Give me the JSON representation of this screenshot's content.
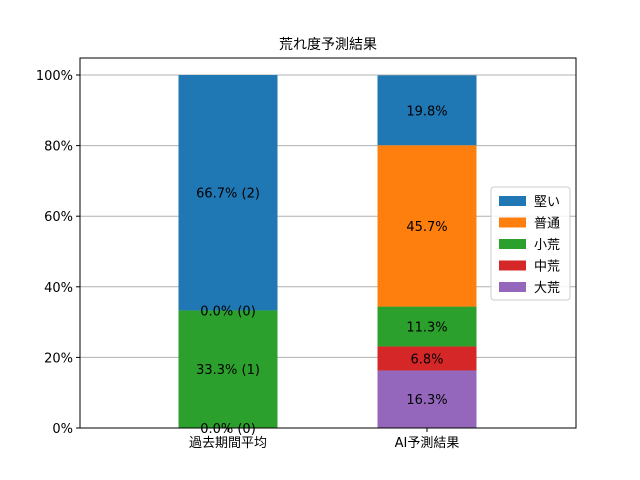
{
  "chart_data": {
    "type": "bar",
    "stacked": true,
    "title": "荒れ度予測結果",
    "categories": [
      "過去期間平均",
      "AI予測結果"
    ],
    "series": [
      {
        "name": "大荒",
        "color": "#9467bd",
        "values": [
          0.0,
          16.3
        ],
        "labels": [
          "0.0% (0)",
          "16.3%"
        ]
      },
      {
        "name": "中荒",
        "color": "#d62728",
        "values": [
          0.0,
          6.8
        ],
        "labels": [
          "",
          "6.8%"
        ]
      },
      {
        "name": "小荒",
        "color": "#2ca02c",
        "values": [
          33.3,
          11.3
        ],
        "labels": [
          "33.3% (1)",
          "11.3%"
        ]
      },
      {
        "name": "普通",
        "color": "#ff7f0e",
        "values": [
          0.0,
          45.7
        ],
        "labels": [
          "0.0% (0)",
          "45.7%"
        ]
      },
      {
        "name": "堅い",
        "color": "#1f77b4",
        "values": [
          66.7,
          19.8
        ],
        "labels": [
          "66.7% (2)",
          "19.8%"
        ]
      }
    ],
    "legend_order": [
      "堅い",
      "普通",
      "小荒",
      "中荒",
      "大荒"
    ],
    "yticks": [
      "0%",
      "20%",
      "40%",
      "60%",
      "80%",
      "100%"
    ],
    "ylim": [
      0,
      100
    ],
    "grid": "horizontal",
    "legend_position": "right"
  }
}
